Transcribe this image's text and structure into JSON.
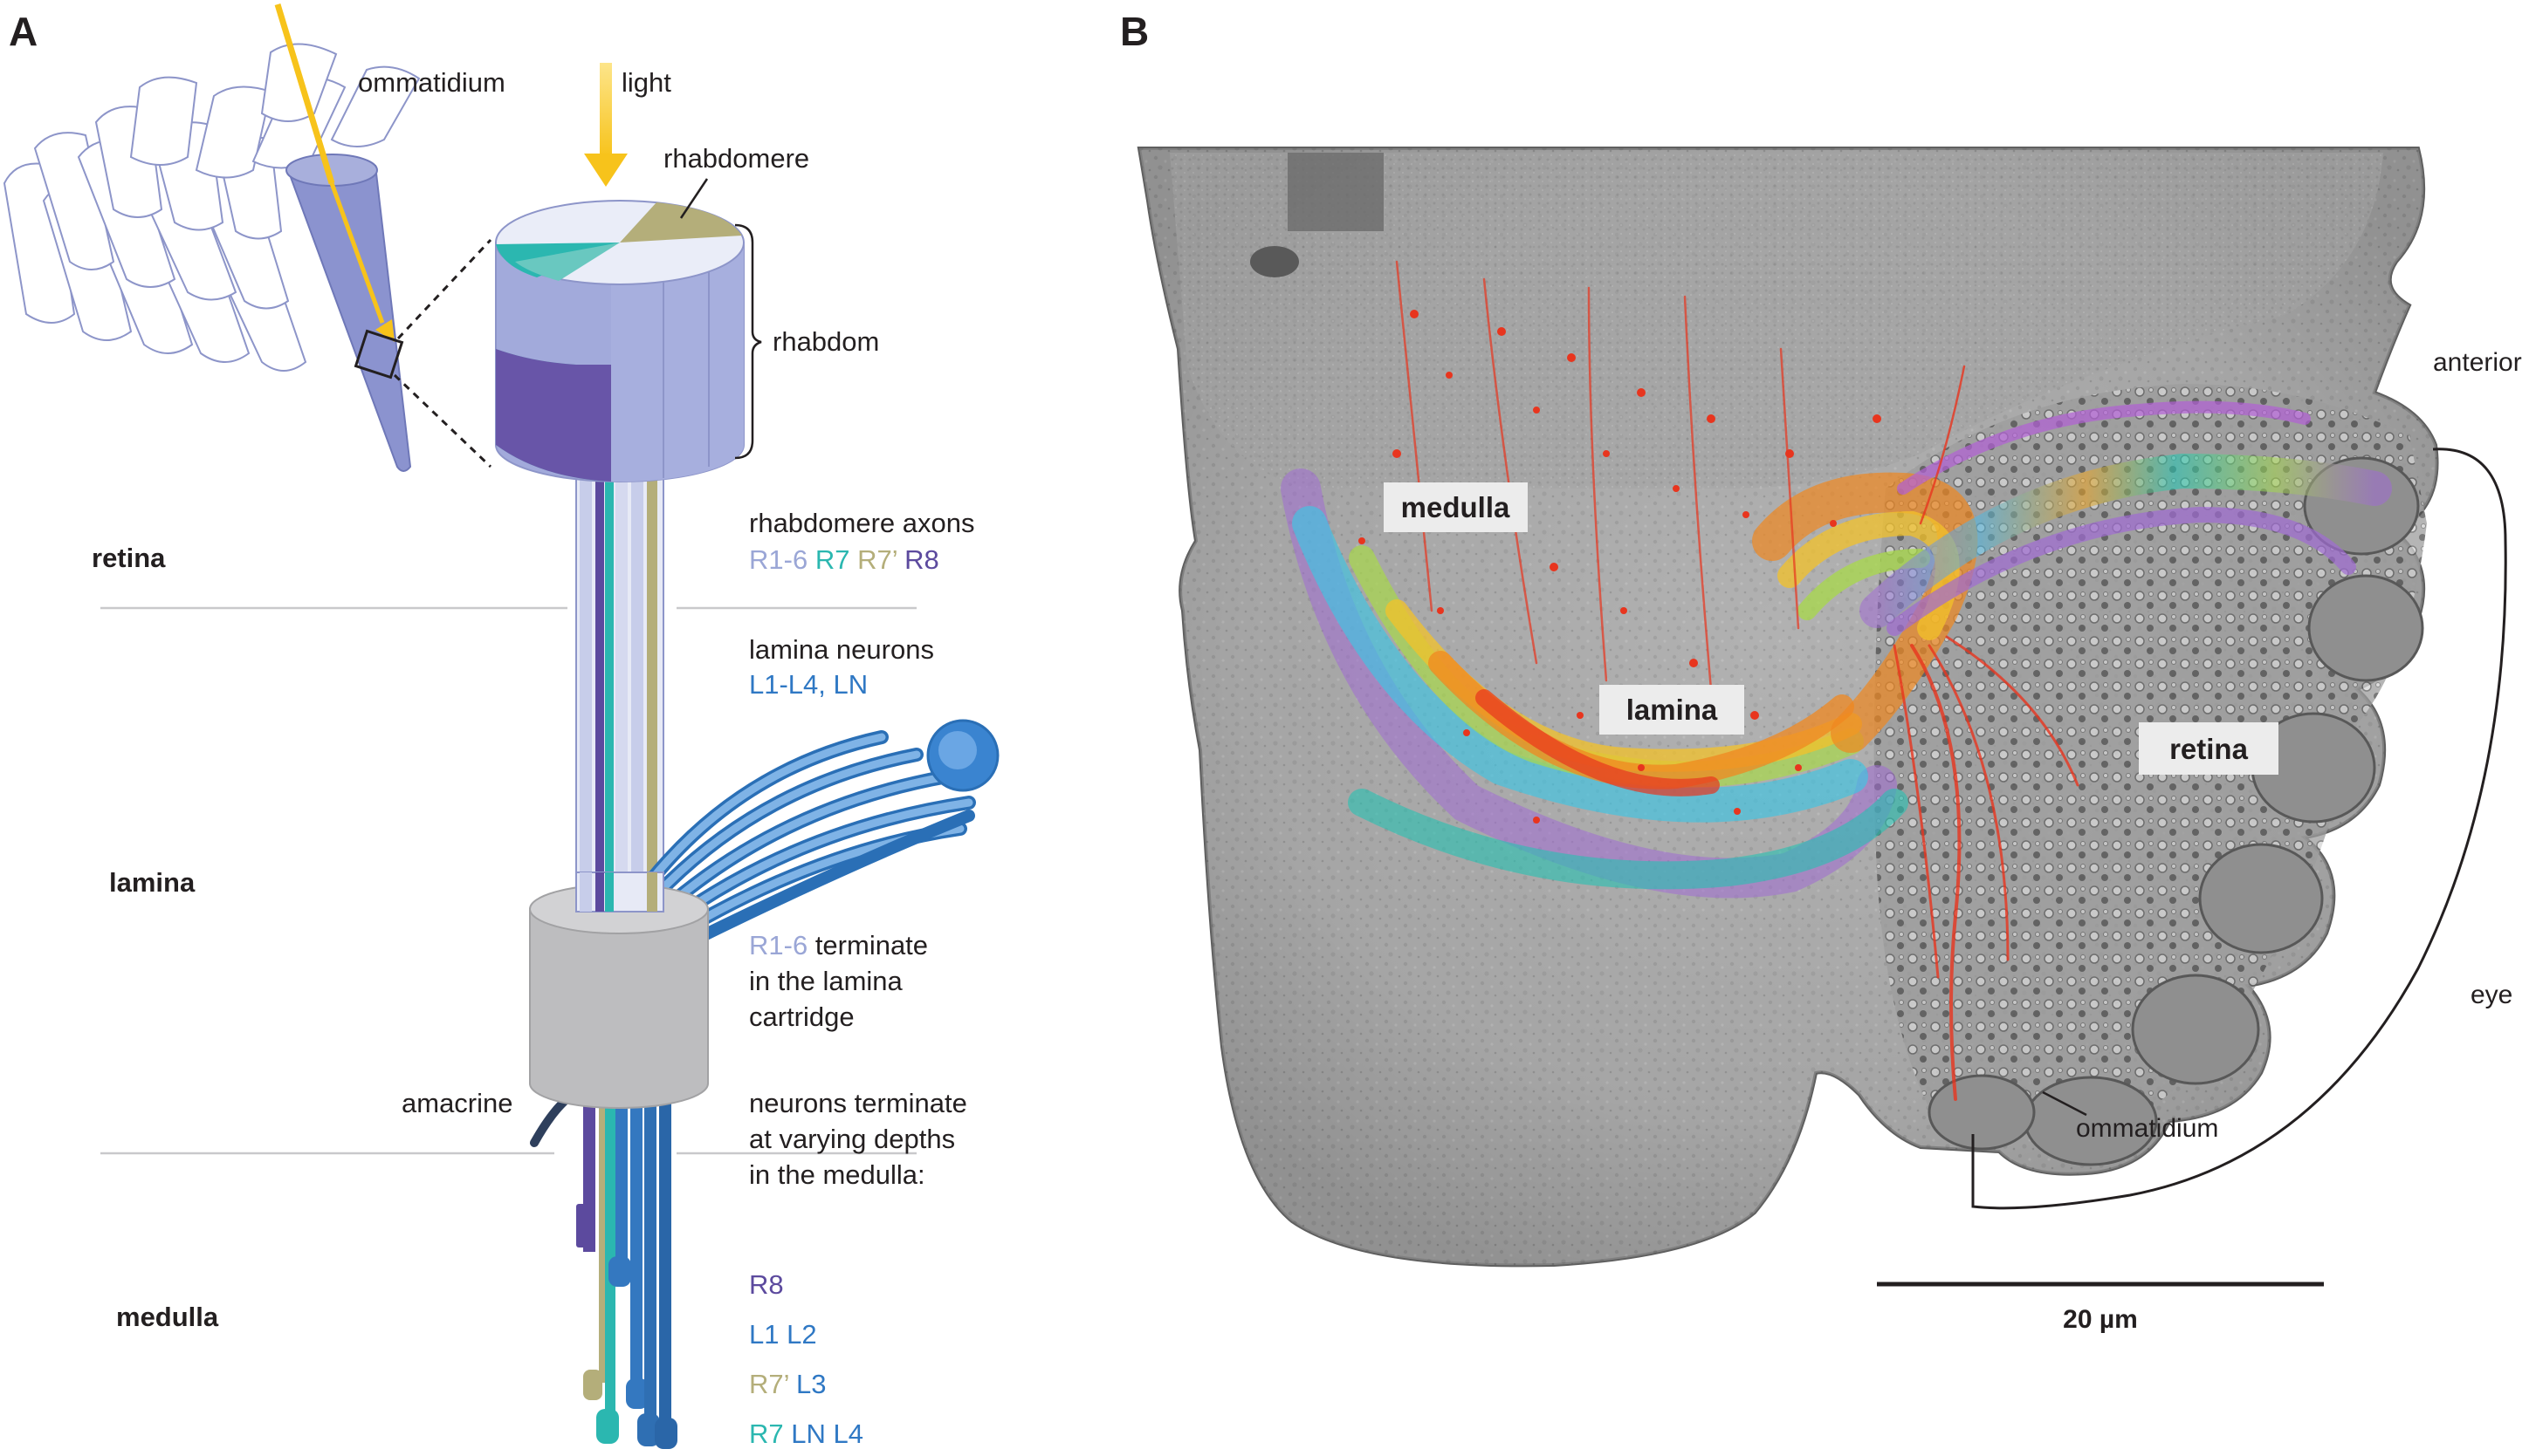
{
  "panels": {
    "a": {
      "letter": "A",
      "ommatidium_label": "ommatidium",
      "light_label": "light",
      "rhabdomere_label": "rhabdomere",
      "rhabdom_label": "rhabdom",
      "regions": {
        "retina": "retina",
        "lamina": "lamina",
        "medulla": "medulla"
      },
      "rhabdomere_axons": {
        "heading": "rhabdomere axons",
        "r16": "R1-6",
        "r7": "R7",
        "r7p": "R7’",
        "r8": "R8"
      },
      "lamina_neurons": {
        "heading": "lamina neurons",
        "list": "L1-L4, LN"
      },
      "r16_note": {
        "r16": "R1-6",
        "line1_rest": " terminate",
        "line2": "in the lamina",
        "line3": "cartridge"
      },
      "amacrine_label": "amacrine",
      "medulla_note": {
        "line1": "neurons terminate",
        "line2": "at varying depths",
        "line3": "in the medulla:"
      },
      "medulla_legend": {
        "row1": {
          "r8": "R8"
        },
        "row2": {
          "l1l2": "L1 L2"
        },
        "row3": {
          "r7p": "R7’",
          "l3": "L3"
        },
        "row4": {
          "r7": "R7",
          "lnl4": "LN L4"
        }
      }
    },
    "b": {
      "letter": "B",
      "labels": {
        "medulla": "medulla",
        "lamina": "lamina",
        "retina": "retina",
        "anterior": "anterior",
        "eye": "eye",
        "ommatidium": "ommatidium"
      },
      "scale_bar": "20 µm"
    }
  },
  "colors": {
    "r16": "#9aa6d6",
    "r7": "#2bb7b0",
    "r7p": "#b4ae7a",
    "r8": "#5c4a9e",
    "lamina_neuron": "#2f78c4",
    "text": "#231f20",
    "light": "#f7c31b"
  }
}
